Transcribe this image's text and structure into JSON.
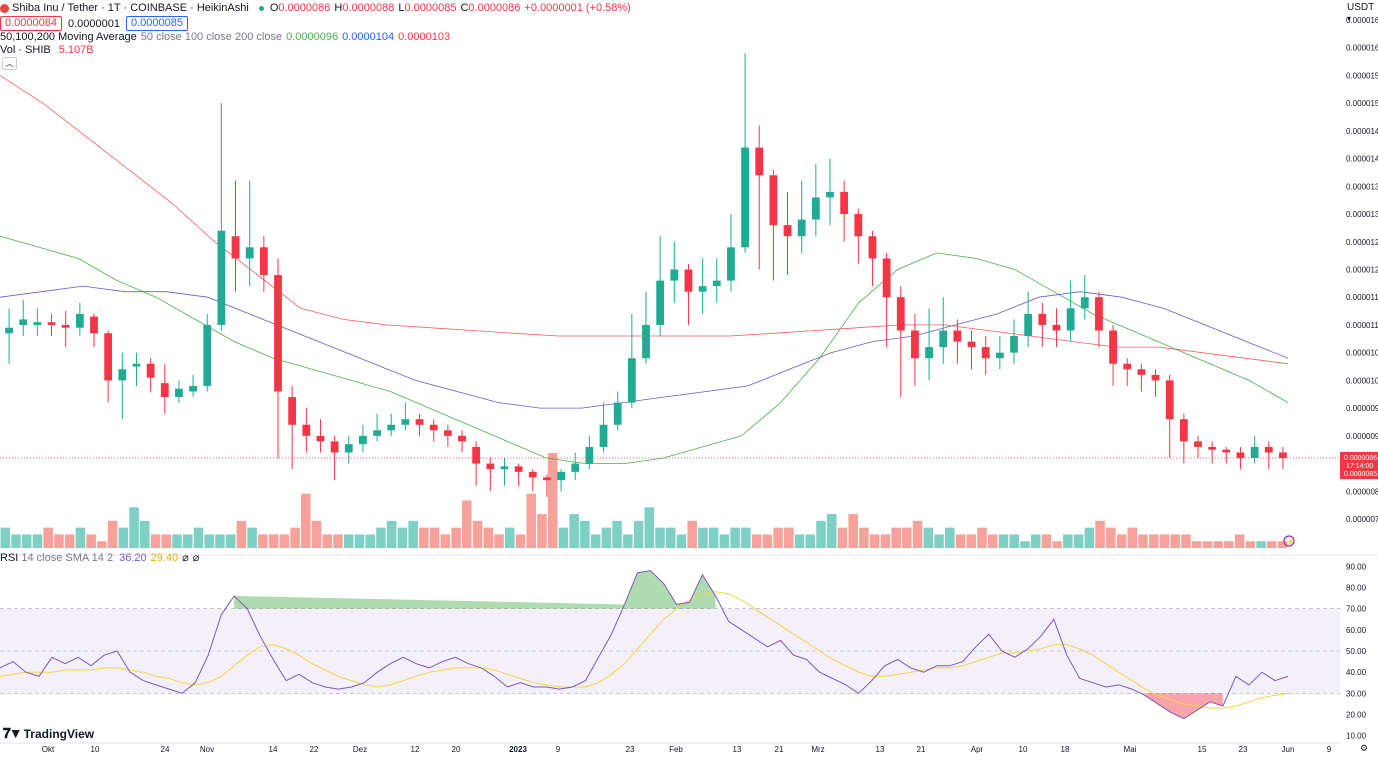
{
  "header": {
    "symbol_title": "Shiba Inu / Tether · 1T · COINBASE · HeikinAshi",
    "ohlc": {
      "o_label": "O",
      "o": "0.0000086",
      "h_label": "H",
      "h": "0.0000088",
      "l_label": "L",
      "l": "0.0000085",
      "c_label": "C",
      "c": "0.0000086",
      "change": "+0.0000001 (+0.58%)"
    },
    "bid": "0.0000084",
    "spread": "0.0000001",
    "ask": "0.0000085"
  },
  "ma_legend": {
    "title": "50,100,200 Moving Average",
    "params": "50 close 100 close 200 close",
    "v50": "0.0000096",
    "v100": "0.0000104",
    "v200": "0.0000103"
  },
  "vol_legend": {
    "title": "Vol · SHIB",
    "value": "5.107B"
  },
  "rsi_legend": {
    "title": "RSI",
    "params": "14 close SMA 14 2",
    "rsi": "36.20",
    "sma": "29.40",
    "extra1": "⌀",
    "extra2": "⌀"
  },
  "currency": "USDT",
  "branding": "TradingView",
  "price_labels": {
    "current": "0.0000086",
    "countdown": "17:14:00",
    "low": "0.0000085"
  },
  "colors": {
    "up": "#22ab94",
    "down": "#f23645",
    "ma50": "#4caf50",
    "ma100": "#6a5acd",
    "ma200": "#f06060",
    "rsi": "#7e57c2",
    "rsi_sma": "#f5d34a",
    "vol_up": "#7fd0c4",
    "vol_down": "#f7a19b"
  },
  "chart_data": [
    {
      "type": "candlestick",
      "subtype": "heikin-ashi",
      "title": "Shiba Inu / Tether · 1T · COINBASE · HeikinAshi",
      "y_axis_ticks": [
        "0.0000165",
        "0.0000160",
        "0.0000155",
        "0.0000150",
        "0.0000145",
        "0.0000140",
        "0.0000135",
        "0.0000130",
        "0.0000125",
        "0.0000120",
        "0.0000115",
        "0.0000110",
        "0.0000105",
        "0.0000100",
        "0.0000095",
        "0.0000090",
        "0.0000085",
        "0.0000080",
        "0.0000075"
      ],
      "ylim": [
        7.2e-06,
        1.67e-05
      ],
      "x_tick_labels": [
        "Okt",
        "10",
        "24",
        "Nov",
        "14",
        "22",
        "Dez",
        "12",
        "20",
        "2023",
        "9",
        "23",
        "Feb",
        "13",
        "21",
        "Mrz",
        "13",
        "21",
        "Apr",
        "10",
        "18",
        "Mai",
        "15",
        "23",
        "Jun",
        "9"
      ],
      "candles_sampled": [
        {
          "o": 10.85,
          "c": 10.95,
          "h": 11.3,
          "l": 10.3
        },
        {
          "o": 11.0,
          "c": 11.1,
          "h": 11.45,
          "l": 10.8
        },
        {
          "o": 11.0,
          "c": 11.05,
          "h": 11.3,
          "l": 10.8
        },
        {
          "o": 11.05,
          "c": 11.0,
          "h": 11.2,
          "l": 10.8
        },
        {
          "o": 11.0,
          "c": 10.95,
          "h": 11.25,
          "l": 10.6
        },
        {
          "o": 10.95,
          "c": 11.2,
          "h": 11.4,
          "l": 10.8
        },
        {
          "o": 11.15,
          "c": 10.85,
          "h": 11.2,
          "l": 10.6
        },
        {
          "o": 10.85,
          "c": 10.0,
          "h": 10.9,
          "l": 9.6
        },
        {
          "o": 10.0,
          "c": 10.2,
          "h": 10.5,
          "l": 9.3
        },
        {
          "o": 10.25,
          "c": 10.3,
          "h": 10.5,
          "l": 9.9
        },
        {
          "o": 10.3,
          "c": 10.05,
          "h": 10.4,
          "l": 9.8
        },
        {
          "o": 9.95,
          "c": 9.7,
          "h": 10.3,
          "l": 9.4
        },
        {
          "o": 9.7,
          "c": 9.85,
          "h": 10.0,
          "l": 9.6
        },
        {
          "o": 9.8,
          "c": 9.9,
          "h": 10.1,
          "l": 9.7
        },
        {
          "o": 9.9,
          "c": 11.0,
          "h": 11.2,
          "l": 9.8
        },
        {
          "o": 11.0,
          "c": 12.7,
          "h": 15.0,
          "l": 10.9
        },
        {
          "o": 12.6,
          "c": 12.2,
          "h": 13.6,
          "l": 11.6
        },
        {
          "o": 12.2,
          "c": 12.4,
          "h": 13.6,
          "l": 11.7
        },
        {
          "o": 12.4,
          "c": 11.9,
          "h": 12.6,
          "l": 11.6
        },
        {
          "o": 11.9,
          "c": 9.8,
          "h": 12.2,
          "l": 8.6
        },
        {
          "o": 9.7,
          "c": 9.2,
          "h": 9.9,
          "l": 8.4
        },
        {
          "o": 9.2,
          "c": 9.0,
          "h": 9.5,
          "l": 8.7
        },
        {
          "o": 9.0,
          "c": 8.9,
          "h": 9.3,
          "l": 8.7
        },
        {
          "o": 8.9,
          "c": 8.7,
          "h": 9.0,
          "l": 8.2
        },
        {
          "o": 8.7,
          "c": 8.85,
          "h": 9.0,
          "l": 8.5
        },
        {
          "o": 8.85,
          "c": 9.0,
          "h": 9.2,
          "l": 8.7
        },
        {
          "o": 9.0,
          "c": 9.1,
          "h": 9.4,
          "l": 8.9
        },
        {
          "o": 9.1,
          "c": 9.2,
          "h": 9.4,
          "l": 9.0
        },
        {
          "o": 9.2,
          "c": 9.3,
          "h": 9.6,
          "l": 9.1
        },
        {
          "o": 9.3,
          "c": 9.2,
          "h": 9.4,
          "l": 9.0
        },
        {
          "o": 9.2,
          "c": 9.1,
          "h": 9.3,
          "l": 8.9
        },
        {
          "o": 9.1,
          "c": 9.0,
          "h": 9.2,
          "l": 8.8
        },
        {
          "o": 9.0,
          "c": 8.9,
          "h": 9.1,
          "l": 8.7
        },
        {
          "o": 8.8,
          "c": 8.5,
          "h": 8.9,
          "l": 8.1
        },
        {
          "o": 8.5,
          "c": 8.4,
          "h": 8.6,
          "l": 8.0
        },
        {
          "o": 8.4,
          "c": 8.45,
          "h": 8.6,
          "l": 8.1
        },
        {
          "o": 8.45,
          "c": 8.35,
          "h": 8.5,
          "l": 8.1
        },
        {
          "o": 8.35,
          "c": 8.25,
          "h": 8.4,
          "l": 8.0
        },
        {
          "o": 8.25,
          "c": 8.2,
          "h": 8.3,
          "l": 7.9
        },
        {
          "o": 8.2,
          "c": 8.35,
          "h": 8.4,
          "l": 8.0
        },
        {
          "o": 8.35,
          "c": 8.5,
          "h": 8.7,
          "l": 8.2
        },
        {
          "o": 8.5,
          "c": 8.8,
          "h": 9.0,
          "l": 8.4
        },
        {
          "o": 8.8,
          "c": 9.2,
          "h": 9.6,
          "l": 8.7
        },
        {
          "o": 9.2,
          "c": 9.6,
          "h": 9.8,
          "l": 9.1
        },
        {
          "o": 9.6,
          "c": 10.4,
          "h": 11.2,
          "l": 9.5
        },
        {
          "o": 10.4,
          "c": 11.0,
          "h": 11.6,
          "l": 10.3
        },
        {
          "o": 11.0,
          "c": 11.8,
          "h": 12.6,
          "l": 10.8
        },
        {
          "o": 11.8,
          "c": 12.0,
          "h": 12.5,
          "l": 11.4
        },
        {
          "o": 12.0,
          "c": 11.6,
          "h": 12.1,
          "l": 11.0
        },
        {
          "o": 11.6,
          "c": 11.7,
          "h": 12.2,
          "l": 11.2
        },
        {
          "o": 11.7,
          "c": 11.8,
          "h": 12.2,
          "l": 11.4
        },
        {
          "o": 11.8,
          "c": 12.4,
          "h": 13.0,
          "l": 11.6
        },
        {
          "o": 12.4,
          "c": 14.2,
          "h": 15.9,
          "l": 12.3
        },
        {
          "o": 14.2,
          "c": 13.7,
          "h": 14.6,
          "l": 12.0
        },
        {
          "o": 13.7,
          "c": 12.8,
          "h": 13.8,
          "l": 11.8
        },
        {
          "o": 12.8,
          "c": 12.6,
          "h": 13.4,
          "l": 11.9
        },
        {
          "o": 12.6,
          "c": 12.9,
          "h": 13.6,
          "l": 12.3
        },
        {
          "o": 12.9,
          "c": 13.3,
          "h": 13.9,
          "l": 12.6
        },
        {
          "o": 13.3,
          "c": 13.4,
          "h": 14.0,
          "l": 12.8
        },
        {
          "o": 13.4,
          "c": 13.0,
          "h": 13.6,
          "l": 12.5
        },
        {
          "o": 13.0,
          "c": 12.6,
          "h": 13.1,
          "l": 12.1
        },
        {
          "o": 12.6,
          "c": 12.2,
          "h": 12.7,
          "l": 11.7
        },
        {
          "o": 12.2,
          "c": 11.5,
          "h": 12.3,
          "l": 10.6
        },
        {
          "o": 11.5,
          "c": 10.9,
          "h": 11.7,
          "l": 9.7
        },
        {
          "o": 10.9,
          "c": 10.4,
          "h": 11.2,
          "l": 9.9
        },
        {
          "o": 10.4,
          "c": 10.6,
          "h": 11.3,
          "l": 10.0
        },
        {
          "o": 10.6,
          "c": 10.9,
          "h": 11.5,
          "l": 10.3
        },
        {
          "o": 10.9,
          "c": 10.7,
          "h": 11.1,
          "l": 10.3
        },
        {
          "o": 10.7,
          "c": 10.6,
          "h": 10.9,
          "l": 10.2
        },
        {
          "o": 10.6,
          "c": 10.4,
          "h": 10.8,
          "l": 10.1
        },
        {
          "o": 10.4,
          "c": 10.5,
          "h": 10.8,
          "l": 10.2
        },
        {
          "o": 10.5,
          "c": 10.8,
          "h": 11.1,
          "l": 10.3
        },
        {
          "o": 10.8,
          "c": 11.2,
          "h": 11.6,
          "l": 10.6
        },
        {
          "o": 11.2,
          "c": 11.0,
          "h": 11.4,
          "l": 10.6
        },
        {
          "o": 11.0,
          "c": 10.9,
          "h": 11.3,
          "l": 10.6
        },
        {
          "o": 10.9,
          "c": 11.3,
          "h": 11.8,
          "l": 10.7
        },
        {
          "o": 11.3,
          "c": 11.5,
          "h": 11.9,
          "l": 11.1
        },
        {
          "o": 11.5,
          "c": 10.9,
          "h": 11.6,
          "l": 10.6
        },
        {
          "o": 10.9,
          "c": 10.3,
          "h": 11.0,
          "l": 9.9
        },
        {
          "o": 10.3,
          "c": 10.2,
          "h": 10.4,
          "l": 9.9
        },
        {
          "o": 10.2,
          "c": 10.1,
          "h": 10.3,
          "l": 9.8
        },
        {
          "o": 10.1,
          "c": 10.0,
          "h": 10.2,
          "l": 9.7
        },
        {
          "o": 10.0,
          "c": 9.3,
          "h": 10.1,
          "l": 8.6
        },
        {
          "o": 9.3,
          "c": 8.9,
          "h": 9.4,
          "l": 8.5
        },
        {
          "o": 8.9,
          "c": 8.8,
          "h": 9.0,
          "l": 8.6
        },
        {
          "o": 8.8,
          "c": 8.75,
          "h": 8.9,
          "l": 8.5
        },
        {
          "o": 8.75,
          "c": 8.7,
          "h": 8.8,
          "l": 8.5
        },
        {
          "o": 8.7,
          "c": 8.6,
          "h": 8.8,
          "l": 8.4
        },
        {
          "o": 8.6,
          "c": 8.8,
          "h": 9.0,
          "l": 8.5
        },
        {
          "o": 8.8,
          "c": 8.7,
          "h": 8.9,
          "l": 8.4
        },
        {
          "o": 8.7,
          "c": 8.6,
          "h": 8.8,
          "l": 8.4
        }
      ],
      "moving_averages": [
        {
          "name": "MA50",
          "ys": [
            12.6,
            12.4,
            12.2,
            11.8,
            11.5,
            11.1,
            10.7,
            10.4,
            10.2,
            10.0,
            9.8,
            9.5,
            9.2,
            8.9,
            8.6,
            8.5,
            8.5,
            8.6,
            8.8,
            9.0,
            9.6,
            10.4,
            11.4,
            12.0,
            12.3,
            12.2,
            12.0,
            11.6,
            11.2,
            10.9,
            10.6,
            10.3,
            10.0,
            9.6
          ]
        },
        {
          "name": "MA100",
          "ys": [
            11.5,
            11.6,
            11.7,
            11.6,
            11.6,
            11.5,
            11.2,
            10.9,
            10.6,
            10.3,
            10.0,
            9.8,
            9.6,
            9.5,
            9.5,
            9.6,
            9.7,
            9.8,
            9.9,
            10.2,
            10.5,
            10.7,
            10.8,
            11.0,
            11.2,
            11.5,
            11.6,
            11.5,
            11.3,
            11.0,
            10.7,
            10.4
          ]
        },
        {
          "name": "MA200",
          "ys": [
            15.5,
            15.0,
            14.4,
            13.8,
            13.2,
            12.5,
            11.9,
            11.3,
            11.1,
            11.0,
            10.95,
            10.9,
            10.85,
            10.8,
            10.8,
            10.8,
            10.8,
            10.8,
            10.85,
            10.9,
            10.95,
            11.0,
            11.0,
            10.9,
            10.8,
            10.7,
            10.6,
            10.6,
            10.5,
            10.4,
            10.3
          ]
        }
      ]
    },
    {
      "type": "bar",
      "title": "Vol · SHIB",
      "value_label": "5.107B",
      "values": [
        3,
        2,
        2,
        2,
        3,
        2,
        2,
        3,
        2,
        1,
        4,
        3,
        6,
        4,
        2,
        2,
        2,
        2,
        3,
        2,
        2,
        2,
        4,
        3,
        2,
        2,
        2,
        3,
        8,
        4,
        2,
        2,
        2,
        2,
        2,
        3,
        4,
        3,
        4,
        3,
        3,
        2,
        3,
        7,
        4,
        3,
        2,
        3,
        2,
        8,
        5,
        14,
        3,
        5,
        4,
        2,
        3,
        4,
        2,
        4,
        6,
        3,
        3,
        2,
        4,
        3,
        3,
        2,
        3,
        3,
        2,
        2,
        3,
        3,
        2,
        2,
        4,
        5,
        3,
        5,
        3,
        2,
        2,
        3,
        3,
        4,
        3,
        2,
        3,
        2,
        2,
        3,
        2,
        2,
        2,
        1,
        2,
        2,
        1,
        2,
        2,
        3,
        4,
        3,
        2,
        3,
        2,
        2,
        2,
        2,
        2,
        1,
        1,
        1,
        1,
        2,
        1,
        1,
        1,
        1
      ]
    },
    {
      "type": "line",
      "title": "RSI",
      "params": "14 close SMA 14 2",
      "ylim": [
        7,
        93
      ],
      "y_axis_ticks": [
        "90.00",
        "80.00",
        "70.00",
        "60.00",
        "50.00",
        "40.00",
        "30.00",
        "20.00",
        "10.00"
      ],
      "bands": {
        "upper": 70,
        "middle": 50,
        "lower": 30
      },
      "series": [
        {
          "name": "RSI",
          "values": [
            42,
            45,
            40,
            38,
            47,
            44,
            47,
            43,
            48,
            50,
            40,
            36,
            34,
            32,
            30,
            35,
            48,
            67,
            76,
            70,
            57,
            46,
            36,
            39,
            35,
            33,
            32,
            33,
            35,
            40,
            44,
            47,
            44,
            42,
            45,
            47,
            44,
            42,
            38,
            33,
            35,
            33,
            33,
            32,
            33,
            36,
            47,
            58,
            72,
            87,
            88,
            82,
            72,
            73,
            86,
            76,
            64,
            60,
            56,
            52,
            55,
            48,
            46,
            40,
            37,
            34,
            30,
            36,
            43,
            46,
            42,
            40,
            43,
            43,
            45,
            52,
            58,
            50,
            47,
            51,
            57,
            65,
            48,
            37,
            35,
            33,
            34,
            32,
            29,
            25,
            21,
            18,
            22,
            26,
            24,
            38,
            34,
            40,
            36,
            38
          ]
        },
        {
          "name": "RSI SMA",
          "values": [
            38,
            39,
            40,
            40,
            40,
            41,
            41,
            41,
            42,
            42,
            41,
            40,
            38,
            37,
            35,
            34,
            35,
            38,
            43,
            48,
            52,
            53,
            51,
            48,
            44,
            41,
            38,
            36,
            34,
            33,
            34,
            36,
            38,
            40,
            41,
            42,
            42,
            42,
            41,
            39,
            37,
            35,
            34,
            33,
            33,
            33,
            35,
            39,
            44,
            51,
            58,
            65,
            70,
            74,
            77,
            78,
            77,
            74,
            70,
            66,
            62,
            58,
            54,
            50,
            46,
            43,
            40,
            38,
            38,
            39,
            40,
            41,
            42,
            42,
            43,
            45,
            47,
            49,
            49,
            50,
            51,
            53,
            53,
            51,
            48,
            44,
            40,
            36,
            32,
            29,
            27,
            25,
            24,
            23,
            23,
            24,
            26,
            28,
            29,
            30
          ]
        }
      ]
    }
  ]
}
